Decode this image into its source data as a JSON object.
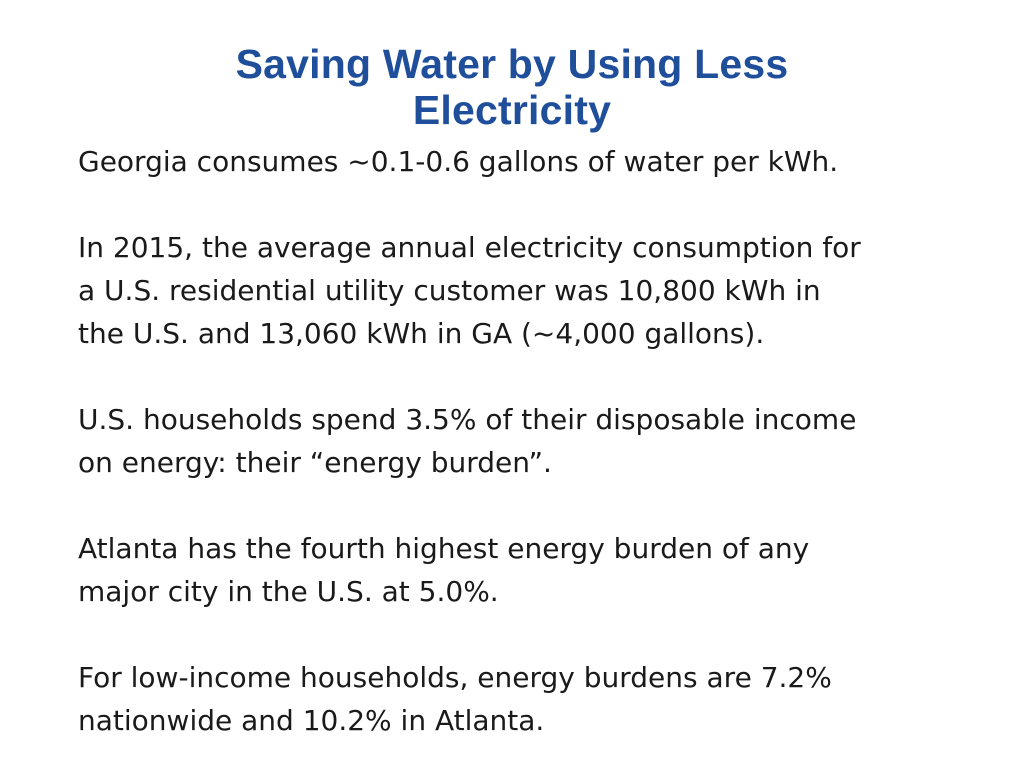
{
  "slide": {
    "title_line1": "Saving Water by Using Less",
    "title_line2": "Electricity",
    "paragraphs": [
      {
        "lines": [
          "Georgia consumes ~0.1-0.6 gallons of water per kWh."
        ]
      },
      {
        "lines": [
          "In 2015, the average annual electricity consumption for",
          "a U.S. residential utility customer was 10,800 kWh in",
          "the U.S. and 13,060 kWh in GA (~4,000 gallons)."
        ]
      },
      {
        "lines": [
          "U.S. households spend 3.5% of their disposable income",
          "on energy: their “energy burden”."
        ]
      },
      {
        "lines": [
          "Atlanta has the fourth highest energy burden of any",
          "major city in the U.S. at 5.0%."
        ]
      },
      {
        "lines": [
          "For low-income households, energy burdens are 7.2%",
          "nationwide and 10.2% in Atlanta."
        ]
      }
    ]
  },
  "colors": {
    "title": "#1f4e9a",
    "body_text": "#1a1a1a",
    "background": "#ffffff"
  }
}
